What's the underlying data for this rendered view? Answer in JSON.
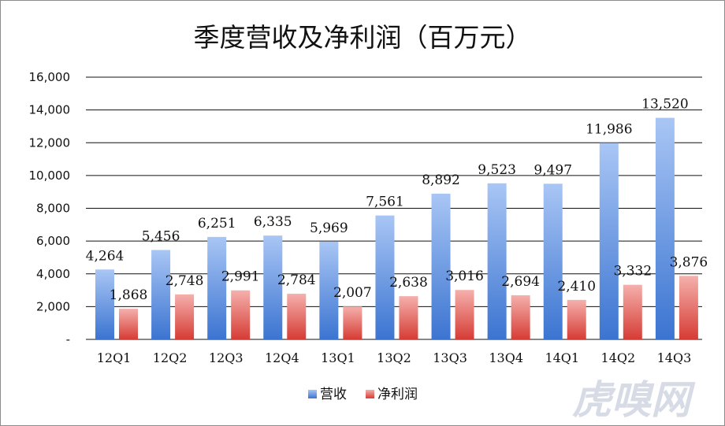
{
  "chart_data": {
    "type": "bar",
    "title": "季度营收及净利润（百万元）",
    "categories": [
      "12Q1",
      "12Q2",
      "12Q3",
      "12Q4",
      "13Q1",
      "13Q2",
      "13Q3",
      "13Q4",
      "14Q1",
      "14Q2",
      "14Q3"
    ],
    "series": [
      {
        "name": "营收",
        "values": [
          4264,
          5456,
          6251,
          6335,
          5969,
          7561,
          8892,
          9523,
          9497,
          11986,
          13520
        ],
        "color_top": "#a9c6f5",
        "color_bottom": "#3b74d1"
      },
      {
        "name": "净利润",
        "values": [
          1868,
          2748,
          2991,
          2784,
          2007,
          2638,
          3016,
          2694,
          2410,
          3332,
          3876
        ],
        "color_top": "#f5b0ac",
        "color_bottom": "#d63c35"
      }
    ],
    "data_labels": {
      "营收": [
        "4,264",
        "5,456",
        "6,251",
        "6,335",
        "5,969",
        "7,561",
        "8,892",
        "9,523",
        "9,497",
        "11,986",
        "13,520"
      ],
      "净利润": [
        "1,868",
        "2,748",
        "2,991",
        "2,784",
        "2,007",
        "2,638",
        "3,016",
        "2,694",
        "2,410",
        "3,332",
        "3,876"
      ]
    },
    "ylim": [
      0,
      16000
    ],
    "yticks": [
      0,
      2000,
      4000,
      6000,
      8000,
      10000,
      12000,
      14000,
      16000
    ],
    "ytick_labels": [
      "-",
      "2,000",
      "4,000",
      "6,000",
      "8,000",
      "10,000",
      "12,000",
      "14,000",
      "16,000"
    ],
    "grid": true,
    "legend_position": "bottom-center"
  },
  "watermark": "虎嗅网"
}
